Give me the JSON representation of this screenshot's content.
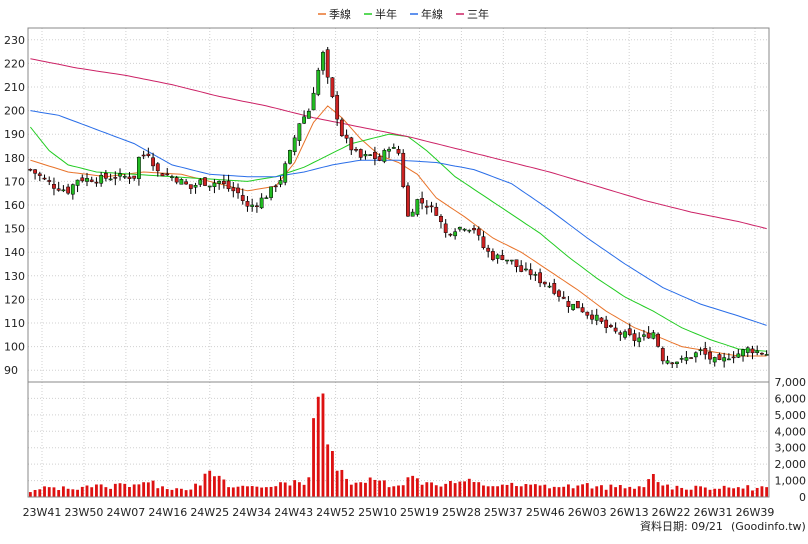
{
  "legend": [
    {
      "label": "季線",
      "color": "#e8732a"
    },
    {
      "label": "半年",
      "color": "#22cc22"
    },
    {
      "label": "年線",
      "color": "#2a6ee8"
    },
    {
      "label": "三年",
      "color": "#cc2266"
    }
  ],
  "footer": {
    "date_label": "資料日期: 09/21",
    "source_label": "(Goodinfo.tw)"
  },
  "colors": {
    "up_candle": "#22bb22",
    "down_candle": "#cc2222",
    "volume_bar": "#dd1111",
    "grid": "#d0d0d0"
  },
  "chart_data": [
    {
      "type": "candlestick",
      "title": "",
      "ylim": [
        85,
        235
      ],
      "y_ticks": [
        90,
        100,
        110,
        120,
        130,
        140,
        150,
        160,
        170,
        180,
        190,
        200,
        210,
        220,
        230
      ],
      "x_ticks": [
        "23W41",
        "23W50",
        "24W07",
        "24W16",
        "24W25",
        "24W34",
        "24W43",
        "24W52",
        "25W10",
        "25W19",
        "25W28",
        "25W37",
        "25W46",
        "26W03",
        "26W13",
        "26W22",
        "26W31",
        "26W39"
      ],
      "weeks": 157,
      "close_anchors": [
        [
          0,
          175
        ],
        [
          5,
          168
        ],
        [
          8,
          166
        ],
        [
          10,
          171
        ],
        [
          14,
          171
        ],
        [
          18,
          172
        ],
        [
          22,
          172
        ],
        [
          23,
          180
        ],
        [
          25,
          182
        ],
        [
          27,
          174
        ],
        [
          30,
          172
        ],
        [
          32,
          170
        ],
        [
          34,
          167
        ],
        [
          36,
          170
        ],
        [
          38,
          169
        ],
        [
          40,
          170
        ],
        [
          42,
          167
        ],
        [
          44,
          165
        ],
        [
          46,
          159
        ],
        [
          48,
          161
        ],
        [
          50,
          164
        ],
        [
          53,
          171
        ],
        [
          55,
          182
        ],
        [
          57,
          195
        ],
        [
          59,
          200
        ],
        [
          61,
          217
        ],
        [
          62,
          224
        ],
        [
          63,
          213
        ],
        [
          64,
          205
        ],
        [
          66,
          190
        ],
        [
          68,
          184
        ],
        [
          70,
          180
        ],
        [
          72,
          181
        ],
        [
          74,
          179
        ],
        [
          76,
          185
        ],
        [
          78,
          182
        ],
        [
          80,
          155
        ],
        [
          82,
          162
        ],
        [
          84,
          160
        ],
        [
          86,
          157
        ],
        [
          88,
          148
        ],
        [
          90,
          150
        ],
        [
          92,
          151
        ],
        [
          94,
          150
        ],
        [
          96,
          142
        ],
        [
          98,
          138
        ],
        [
          100,
          138
        ],
        [
          102,
          136
        ],
        [
          104,
          132
        ],
        [
          106,
          131
        ],
        [
          108,
          128
        ],
        [
          110,
          126
        ],
        [
          112,
          122
        ],
        [
          114,
          118
        ],
        [
          116,
          117
        ],
        [
          118,
          114
        ],
        [
          120,
          112
        ],
        [
          122,
          108
        ],
        [
          124,
          106
        ],
        [
          126,
          105
        ],
        [
          128,
          103
        ],
        [
          130,
          104
        ],
        [
          132,
          106
        ],
        [
          134,
          95
        ],
        [
          136,
          94
        ],
        [
          138,
          94
        ],
        [
          140,
          96
        ],
        [
          142,
          98
        ],
        [
          144,
          95
        ],
        [
          146,
          93
        ],
        [
          148,
          96
        ],
        [
          150,
          97
        ],
        [
          152,
          99
        ],
        [
          154,
          98
        ],
        [
          156,
          97
        ]
      ],
      "series": [
        {
          "name": "季線",
          "color": "#e8732a",
          "anchors": [
            [
              0,
              179
            ],
            [
              8,
              174
            ],
            [
              16,
              172
            ],
            [
              24,
              174
            ],
            [
              32,
              173
            ],
            [
              40,
              169
            ],
            [
              46,
              166
            ],
            [
              52,
              168
            ],
            [
              56,
              178
            ],
            [
              60,
              195
            ],
            [
              63,
              202
            ],
            [
              66,
              197
            ],
            [
              70,
              188
            ],
            [
              74,
              181
            ],
            [
              78,
              178
            ],
            [
              82,
              173
            ],
            [
              86,
              163
            ],
            [
              92,
              155
            ],
            [
              98,
              146
            ],
            [
              104,
              140
            ],
            [
              110,
              132
            ],
            [
              116,
              124
            ],
            [
              122,
              115
            ],
            [
              128,
              108
            ],
            [
              132,
              105
            ],
            [
              138,
              100
            ],
            [
              144,
              98
            ],
            [
              150,
              96
            ],
            [
              156,
              96
            ]
          ]
        },
        {
          "name": "半年",
          "color": "#22cc22",
          "anchors": [
            [
              0,
              193
            ],
            [
              4,
              183
            ],
            [
              8,
              177
            ],
            [
              14,
              174
            ],
            [
              22,
              173
            ],
            [
              30,
              172
            ],
            [
              38,
              171
            ],
            [
              46,
              170
            ],
            [
              52,
              172
            ],
            [
              58,
              176
            ],
            [
              63,
              181
            ],
            [
              68,
              186
            ],
            [
              72,
              188
            ],
            [
              76,
              190
            ],
            [
              80,
              189
            ],
            [
              84,
              183
            ],
            [
              90,
              172
            ],
            [
              96,
              164
            ],
            [
              102,
              156
            ],
            [
              108,
              148
            ],
            [
              114,
              138
            ],
            [
              120,
              129
            ],
            [
              126,
              121
            ],
            [
              132,
              115
            ],
            [
              138,
              108
            ],
            [
              144,
              103
            ],
            [
              150,
              99
            ],
            [
              156,
              98
            ]
          ]
        },
        {
          "name": "年線",
          "color": "#2a6ee8",
          "anchors": [
            [
              0,
              200
            ],
            [
              6,
              198
            ],
            [
              14,
              192
            ],
            [
              22,
              186
            ],
            [
              30,
              177
            ],
            [
              38,
              173
            ],
            [
              46,
              172
            ],
            [
              52,
              172
            ],
            [
              58,
              174
            ],
            [
              64,
              177
            ],
            [
              70,
              179
            ],
            [
              78,
              179
            ],
            [
              86,
              178
            ],
            [
              94,
              175
            ],
            [
              102,
              169
            ],
            [
              110,
              158
            ],
            [
              118,
              146
            ],
            [
              126,
              135
            ],
            [
              134,
              125
            ],
            [
              142,
              118
            ],
            [
              150,
              113
            ],
            [
              156,
              109
            ]
          ]
        },
        {
          "name": "三年",
          "color": "#cc2266",
          "anchors": [
            [
              0,
              222
            ],
            [
              10,
              218
            ],
            [
              20,
              215
            ],
            [
              30,
              211
            ],
            [
              40,
              206
            ],
            [
              50,
              202
            ],
            [
              60,
              197
            ],
            [
              70,
              193
            ],
            [
              80,
              189
            ],
            [
              90,
              184
            ],
            [
              100,
              179
            ],
            [
              110,
              174
            ],
            [
              120,
              168
            ],
            [
              130,
              162
            ],
            [
              140,
              157
            ],
            [
              150,
              153
            ],
            [
              156,
              150
            ]
          ]
        }
      ]
    },
    {
      "type": "bar",
      "title": "",
      "ylim": [
        0,
        7000
      ],
      "y_ticks": [
        "0",
        "1,000",
        "2,000",
        "3,000",
        "4,000",
        "5,000",
        "6,000",
        "7,000"
      ],
      "volume_anchors": [
        [
          0,
          300
        ],
        [
          4,
          600
        ],
        [
          8,
          500
        ],
        [
          12,
          700
        ],
        [
          16,
          600
        ],
        [
          20,
          800
        ],
        [
          24,
          900
        ],
        [
          28,
          650
        ],
        [
          32,
          500
        ],
        [
          36,
          700
        ],
        [
          38,
          1600
        ],
        [
          42,
          600
        ],
        [
          46,
          650
        ],
        [
          50,
          600
        ],
        [
          53,
          900
        ],
        [
          55,
          700
        ],
        [
          57,
          900
        ],
        [
          59,
          1200
        ],
        [
          60,
          4800
        ],
        [
          61,
          6100
        ],
        [
          62,
          6300
        ],
        [
          63,
          3200
        ],
        [
          64,
          2800
        ],
        [
          65,
          1600
        ],
        [
          67,
          1100
        ],
        [
          70,
          900
        ],
        [
          74,
          1000
        ],
        [
          78,
          700
        ],
        [
          80,
          1200
        ],
        [
          84,
          900
        ],
        [
          88,
          800
        ],
        [
          92,
          950
        ],
        [
          96,
          700
        ],
        [
          100,
          750
        ],
        [
          104,
          650
        ],
        [
          108,
          700
        ],
        [
          112,
          600
        ],
        [
          116,
          700
        ],
        [
          120,
          650
        ],
        [
          124,
          600
        ],
        [
          128,
          500
        ],
        [
          130,
          600
        ],
        [
          132,
          1400
        ],
        [
          134,
          700
        ],
        [
          138,
          550
        ],
        [
          142,
          650
        ],
        [
          146,
          500
        ],
        [
          150,
          600
        ],
        [
          154,
          550
        ],
        [
          156,
          600
        ]
      ]
    }
  ]
}
